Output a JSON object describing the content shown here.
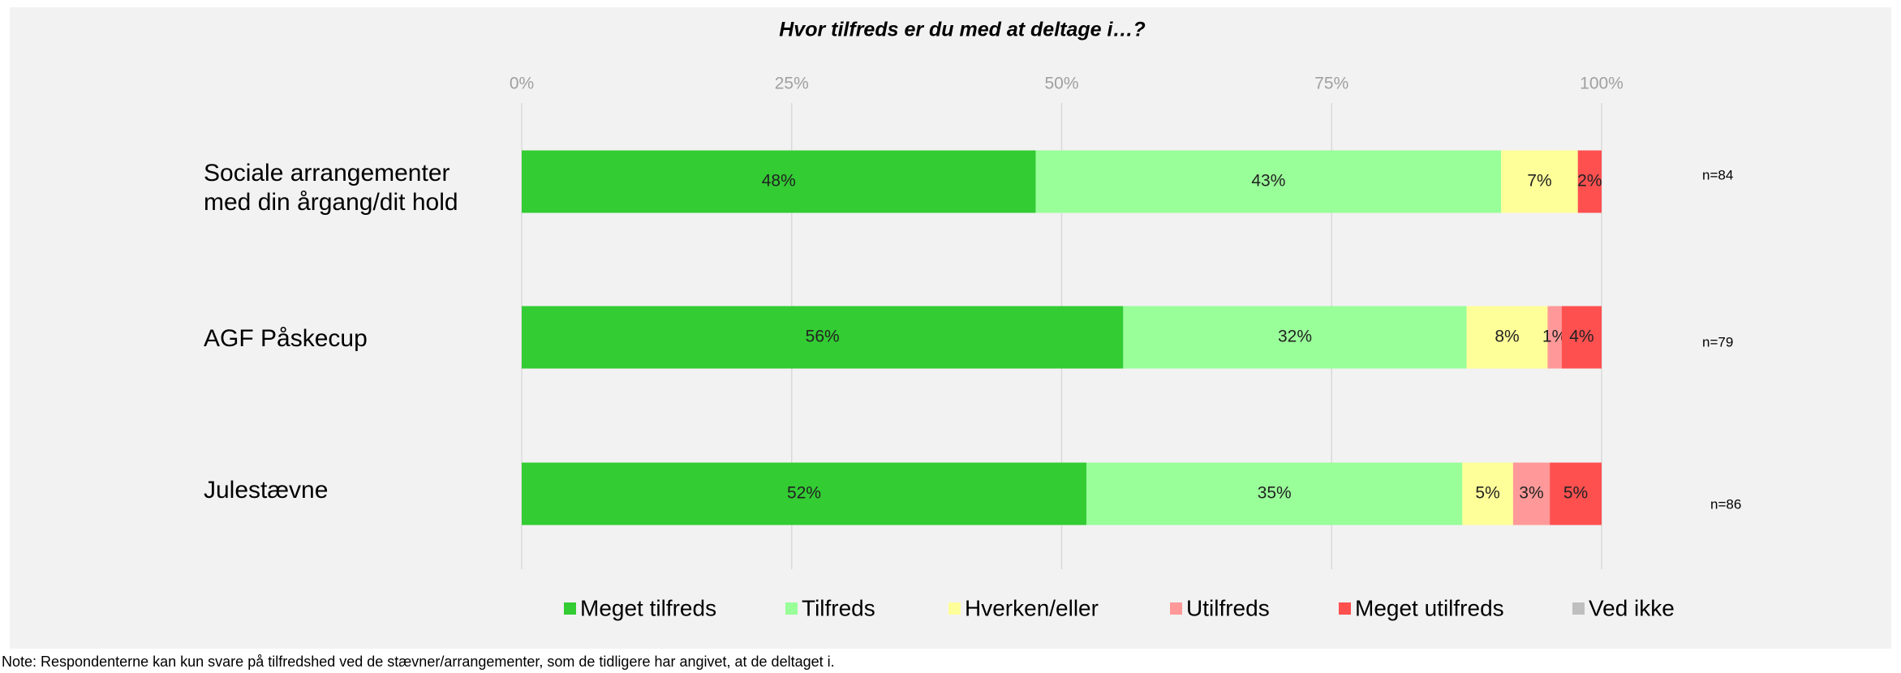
{
  "chart_data": {
    "type": "stacked-barh",
    "title": "Hvor tilfreds er du med at deltage i…?",
    "categories": [
      "Sociale arrangementer med din årgang/dit hold",
      "AGF Påskecup",
      "Julestævne"
    ],
    "series": [
      {
        "name": "Meget tilfreds",
        "color": "#33cc33",
        "values": [
          47.6,
          55.7,
          52.3
        ],
        "value_labels": [
          "48%",
          "56%",
          "52%"
        ]
      },
      {
        "name": "Tilfreds",
        "color": "#99ff99",
        "values": [
          43.1,
          31.8,
          34.8
        ],
        "value_labels": [
          "43%",
          "32%",
          "35%"
        ]
      },
      {
        "name": "Hverken/eller",
        "color": "#ffff99",
        "values": [
          7.1,
          7.5,
          4.7
        ],
        "value_labels": [
          "7%",
          "8%",
          "5%"
        ]
      },
      {
        "name": "Utilfreds",
        "color": "#ff9999",
        "values": [
          null,
          1.3,
          3.4
        ],
        "value_labels": [
          null,
          "1%",
          "3%"
        ]
      },
      {
        "name": "Meget utilfreds",
        "color": "#ff5050",
        "values": [
          2.2,
          3.7,
          4.8
        ],
        "value_labels": [
          "2%",
          "4%",
          "5%"
        ]
      },
      {
        "name": "Ved ikke",
        "color": "#bfbfbf",
        "values": [
          null,
          null,
          null
        ]
      }
    ],
    "xlim": [
      0,
      100
    ],
    "xticks": [
      {
        "value": 0,
        "label": "0%"
      },
      {
        "value": 25,
        "label": "25%"
      },
      {
        "value": 50,
        "label": "50%"
      },
      {
        "value": 75,
        "label": "75%"
      },
      {
        "value": 100,
        "label": "100%"
      }
    ],
    "grid": true,
    "legend": "bottom",
    "annotations": [
      "n=84",
      "n=79",
      "n=86"
    ],
    "note": "Note: Respondenterne kan kun svare på tilfredshed ved de stævner/arrangementer, som de tidligere har angivet, at de deltaget i."
  }
}
